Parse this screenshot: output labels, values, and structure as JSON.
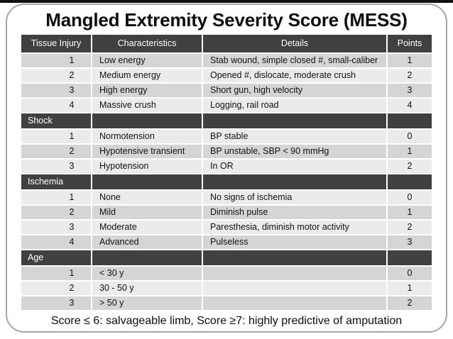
{
  "slide": {
    "title": "Mangled Extremity Severity Score (MESS)",
    "footer": "Score ≤ 6: salvageable limb, Score ≥7: highly predictive of amputation"
  },
  "table": {
    "columns": [
      "Tissue Injury",
      "Characteristics",
      "Details",
      "Points"
    ],
    "sections": [
      {
        "label": "",
        "rows": [
          {
            "grade": "1",
            "characteristic": "Low energy",
            "detail": "Stab wound, simple closed #, small-caliber",
            "points": "1"
          },
          {
            "grade": "2",
            "characteristic": "Medium energy",
            "detail": "Opened #, dislocate, moderate crush",
            "points": "2"
          },
          {
            "grade": "3",
            "characteristic": "High energy",
            "detail": "Short gun, high velocity",
            "points": "3"
          },
          {
            "grade": "4",
            "characteristic": "Massive crush",
            "detail": "Logging, rail road",
            "points": "4"
          }
        ]
      },
      {
        "label": "Shock",
        "rows": [
          {
            "grade": "1",
            "characteristic": "Normotension",
            "detail": "BP stable",
            "points": "0"
          },
          {
            "grade": "2",
            "characteristic": "Hypotensive transient",
            "detail": "BP unstable, SBP < 90 mmHg",
            "points": "1"
          },
          {
            "grade": "3",
            "characteristic": "Hypotension",
            "detail": "In OR",
            "points": "2"
          }
        ]
      },
      {
        "label": "Ischemia",
        "rows": [
          {
            "grade": "1",
            "characteristic": "None",
            "detail": "No signs of ischemia",
            "points": "0"
          },
          {
            "grade": "2",
            "characteristic": "Mild",
            "detail": "Diminish pulse",
            "points": "1"
          },
          {
            "grade": "3",
            "characteristic": "Moderate",
            "detail": "Paresthesia, diminish motor activity",
            "points": "2"
          },
          {
            "grade": "4",
            "characteristic": "Advanced",
            "detail": "Pulseless",
            "points": "3"
          }
        ]
      },
      {
        "label": "Age",
        "rows": [
          {
            "grade": "1",
            "characteristic": "< 30 y",
            "detail": "",
            "points": "0"
          },
          {
            "grade": "2",
            "characteristic": "30 - 50 y",
            "detail": "",
            "points": "1"
          },
          {
            "grade": "3",
            "characteristic": "> 50 y",
            "detail": "",
            "points": "2"
          }
        ]
      }
    ]
  },
  "colors": {
    "header_bg": "#404040",
    "section_bg": "#404040",
    "band_dark": "#d5d5d5",
    "band_light": "#ebebeb",
    "card_border": "#a6a6a6",
    "top_strip": "#111111"
  }
}
